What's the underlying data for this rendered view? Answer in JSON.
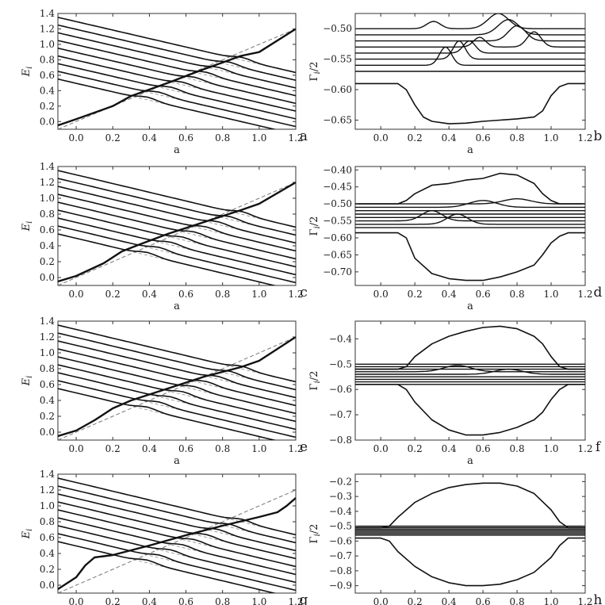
{
  "chart_data": [
    {
      "panel": "a",
      "kind": "E",
      "type": "line",
      "xlabel": "a",
      "ylabel": "E_i",
      "xlim": [
        -0.1,
        1.2
      ],
      "ylim": [
        -0.1,
        1.4
      ],
      "xticks": [
        "0.0",
        "0.2",
        "0.4",
        "0.6",
        "0.8",
        "1.0",
        "1.2"
      ],
      "yticks": [
        "0.0",
        "0.2",
        "0.4",
        "0.6",
        "0.8",
        "1.0",
        "1.2",
        "1.4"
      ],
      "rising_line": {
        "x": [
          -0.1,
          0.0,
          0.2,
          0.3,
          0.5,
          0.7,
          0.9,
          1.0,
          1.2
        ],
        "y": [
          -0.05,
          0.03,
          0.2,
          0.33,
          0.5,
          0.68,
          0.85,
          0.9,
          1.2
        ]
      },
      "levels": [
        1.35,
        1.25,
        1.15,
        1.05,
        0.95,
        0.85,
        0.75,
        0.65,
        0.55
      ],
      "level_slope": -0.55,
      "dashed": {
        "x": [
          -0.1,
          1.2
        ],
        "y": [
          -0.1,
          1.2
        ]
      }
    },
    {
      "panel": "b",
      "kind": "G",
      "type": "line",
      "xlabel": "a",
      "ylabel": "Γ_i/2",
      "xlim": [
        -0.15,
        1.2
      ],
      "ylim": [
        -0.665,
        -0.475
      ],
      "xticks": [
        "0.0",
        "0.2",
        "0.4",
        "0.6",
        "0.8",
        "1.0",
        "1.2"
      ],
      "yticks": [
        "-0.65",
        "-0.60",
        "-0.55",
        "-0.50"
      ],
      "baselines": [
        -0.5,
        -0.51,
        -0.52,
        -0.53,
        -0.54,
        -0.55,
        -0.56,
        -0.57
      ],
      "peaks": [
        {
          "base": -0.5,
          "center": 0.31,
          "height": 0.012,
          "width": 0.04
        },
        {
          "base": -0.5,
          "center": 0.69,
          "height": 0.025,
          "width": 0.06
        },
        {
          "base": -0.51,
          "center": 0.75,
          "height": 0.025,
          "width": 0.06
        },
        {
          "base": -0.52,
          "center": 0.8,
          "height": 0.025,
          "width": 0.05
        },
        {
          "base": -0.53,
          "center": 0.9,
          "height": 0.025,
          "width": 0.04
        },
        {
          "base": -0.53,
          "center": 0.58,
          "height": 0.016,
          "width": 0.035
        },
        {
          "base": -0.54,
          "center": 0.52,
          "height": 0.02,
          "width": 0.035
        },
        {
          "base": -0.55,
          "center": 0.46,
          "height": 0.03,
          "width": 0.035
        },
        {
          "base": -0.56,
          "center": 0.38,
          "height": 0.03,
          "width": 0.035
        }
      ],
      "lower": {
        "x": [
          -0.15,
          0.1,
          0.15,
          0.2,
          0.25,
          0.3,
          0.4,
          0.5,
          0.6,
          0.7,
          0.8,
          0.9,
          0.95,
          1.0,
          1.05,
          1.1,
          1.2
        ],
        "y": [
          -0.59,
          -0.59,
          -0.6,
          -0.625,
          -0.645,
          -0.652,
          -0.656,
          -0.655,
          -0.652,
          -0.65,
          -0.648,
          -0.645,
          -0.635,
          -0.61,
          -0.595,
          -0.59,
          -0.59
        ]
      }
    },
    {
      "panel": "c",
      "kind": "E",
      "type": "line",
      "xlabel": "a",
      "ylabel": "E_i",
      "xlim": [
        -0.1,
        1.2
      ],
      "ylim": [
        -0.1,
        1.4
      ],
      "xticks": [
        "0.0",
        "0.2",
        "0.4",
        "0.6",
        "0.8",
        "1.0",
        "1.2"
      ],
      "yticks": [
        "0.0",
        "0.2",
        "0.4",
        "0.6",
        "0.8",
        "1.0",
        "1.2",
        "1.4"
      ],
      "rising_line": {
        "x": [
          -0.1,
          0.0,
          0.15,
          0.25,
          0.35,
          0.5,
          0.7,
          0.9,
          1.0,
          1.2
        ],
        "y": [
          -0.05,
          0.02,
          0.18,
          0.33,
          0.42,
          0.55,
          0.7,
          0.85,
          0.93,
          1.2
        ]
      },
      "levels": [
        1.35,
        1.25,
        1.15,
        1.05,
        0.95,
        0.85,
        0.75,
        0.65,
        0.55
      ],
      "level_slope": -0.55,
      "dashed": {
        "x": [
          -0.1,
          1.2
        ],
        "y": [
          -0.1,
          1.2
        ]
      }
    },
    {
      "panel": "d",
      "kind": "G",
      "type": "line",
      "xlabel": "a",
      "ylabel": "Γ_i/2",
      "xlim": [
        -0.15,
        1.2
      ],
      "ylim": [
        -0.74,
        -0.39
      ],
      "xticks": [
        "0.0",
        "0.2",
        "0.4",
        "0.6",
        "0.8",
        "1.0",
        "1.2"
      ],
      "yticks": [
        "-0.70",
        "-0.65",
        "-0.60",
        "-0.55",
        "-0.50",
        "-0.45",
        "-0.40"
      ],
      "baselines": [
        -0.5,
        -0.51,
        -0.52,
        -0.53,
        -0.54,
        -0.55,
        -0.56,
        -0.57
      ],
      "peaks": [
        {
          "base": -0.5,
          "center": 0.8,
          "height": 0.015,
          "width": 0.08
        },
        {
          "base": -0.51,
          "center": 0.6,
          "height": 0.02,
          "width": 0.08
        },
        {
          "base": -0.55,
          "center": 0.3,
          "height": 0.03,
          "width": 0.06
        },
        {
          "base": -0.56,
          "center": 0.45,
          "height": 0.03,
          "width": 0.06
        }
      ],
      "upper": {
        "x": [
          -0.15,
          0.05,
          0.1,
          0.15,
          0.2,
          0.3,
          0.4,
          0.5,
          0.6,
          0.7,
          0.8,
          0.9,
          0.95,
          1.0,
          1.05,
          1.1,
          1.2
        ],
        "y": [
          -0.5,
          -0.5,
          -0.5,
          -0.49,
          -0.47,
          -0.445,
          -0.44,
          -0.43,
          -0.425,
          -0.41,
          -0.415,
          -0.44,
          -0.47,
          -0.49,
          -0.5,
          -0.5,
          -0.5
        ]
      },
      "lower": {
        "x": [
          -0.15,
          0.1,
          0.15,
          0.2,
          0.3,
          0.4,
          0.5,
          0.6,
          0.7,
          0.8,
          0.9,
          0.95,
          1.0,
          1.05,
          1.1,
          1.2
        ],
        "y": [
          -0.585,
          -0.585,
          -0.6,
          -0.66,
          -0.705,
          -0.72,
          -0.725,
          -0.725,
          -0.715,
          -0.7,
          -0.68,
          -0.65,
          -0.615,
          -0.595,
          -0.585,
          -0.585
        ]
      }
    },
    {
      "panel": "e",
      "kind": "E",
      "type": "line",
      "xlabel": "a",
      "ylabel": "E_i",
      "xlim": [
        -0.1,
        1.2
      ],
      "ylim": [
        -0.1,
        1.4
      ],
      "xticks": [
        "0.0",
        "0.2",
        "0.4",
        "0.6",
        "0.8",
        "1.0",
        "1.2"
      ],
      "yticks": [
        "0.0",
        "0.2",
        "0.4",
        "0.6",
        "0.8",
        "1.0",
        "1.2",
        "1.4"
      ],
      "rising_line": {
        "x": [
          -0.1,
          0.0,
          0.1,
          0.2,
          0.3,
          0.5,
          0.7,
          0.9,
          1.0,
          1.1,
          1.2
        ],
        "y": [
          -0.05,
          0.02,
          0.15,
          0.3,
          0.4,
          0.55,
          0.7,
          0.82,
          0.9,
          1.05,
          1.2
        ]
      },
      "levels": [
        1.35,
        1.25,
        1.15,
        1.05,
        0.95,
        0.85,
        0.75,
        0.65,
        0.55
      ],
      "level_slope": -0.55,
      "dashed": {
        "x": [
          -0.1,
          1.2
        ],
        "y": [
          -0.1,
          1.2
        ]
      }
    },
    {
      "panel": "f",
      "kind": "G",
      "type": "line",
      "xlabel": "a",
      "ylabel": "Γ_i/2",
      "xlim": [
        -0.15,
        1.2
      ],
      "ylim": [
        -0.8,
        -0.33
      ],
      "xticks": [
        "0.0",
        "0.2",
        "0.4",
        "0.6",
        "0.8",
        "1.0",
        "1.2"
      ],
      "yticks": [
        "-0.8",
        "-0.7",
        "-0.6",
        "-0.5",
        "-0.4"
      ],
      "baselines": [
        -0.5,
        -0.51,
        -0.52,
        -0.53,
        -0.54,
        -0.55,
        -0.56,
        -0.57,
        -0.58
      ],
      "peaks": [
        {
          "base": -0.53,
          "center": 0.45,
          "height": 0.025,
          "width": 0.08
        },
        {
          "base": -0.54,
          "center": 0.75,
          "height": 0.02,
          "width": 0.08
        }
      ],
      "upper": {
        "x": [
          -0.15,
          0.1,
          0.15,
          0.2,
          0.3,
          0.4,
          0.5,
          0.6,
          0.7,
          0.8,
          0.9,
          0.95,
          1.0,
          1.05,
          1.1,
          1.2
        ],
        "y": [
          -0.52,
          -0.52,
          -0.51,
          -0.47,
          -0.42,
          -0.39,
          -0.37,
          -0.355,
          -0.35,
          -0.36,
          -0.39,
          -0.42,
          -0.47,
          -0.51,
          -0.52,
          -0.52
        ]
      },
      "lower": {
        "x": [
          -0.15,
          0.1,
          0.15,
          0.2,
          0.3,
          0.4,
          0.5,
          0.6,
          0.7,
          0.8,
          0.9,
          0.95,
          1.0,
          1.05,
          1.1,
          1.2
        ],
        "y": [
          -0.58,
          -0.58,
          -0.6,
          -0.65,
          -0.72,
          -0.76,
          -0.78,
          -0.78,
          -0.77,
          -0.75,
          -0.72,
          -0.69,
          -0.64,
          -0.6,
          -0.58,
          -0.58
        ]
      }
    },
    {
      "panel": "g",
      "kind": "E",
      "type": "line",
      "xlabel": "a",
      "ylabel": "E_i",
      "xlim": [
        -0.1,
        1.2
      ],
      "ylim": [
        -0.1,
        1.4
      ],
      "xticks": [
        "0.0",
        "0.2",
        "0.4",
        "0.6",
        "0.8",
        "1.0",
        "1.2"
      ],
      "yticks": [
        "0.0",
        "0.2",
        "0.4",
        "0.6",
        "0.8",
        "1.0",
        "1.2",
        "1.4"
      ],
      "rising_line": {
        "x": [
          -0.1,
          0.0,
          0.05,
          0.1,
          0.2,
          0.4,
          0.6,
          0.8,
          1.0,
          1.1,
          1.15,
          1.2
        ],
        "y": [
          -0.05,
          0.1,
          0.25,
          0.35,
          0.38,
          0.5,
          0.63,
          0.75,
          0.86,
          0.92,
          1.0,
          1.1
        ]
      },
      "levels": [
        1.35,
        1.25,
        1.15,
        1.05,
        0.95,
        0.85,
        0.75,
        0.65,
        0.55
      ],
      "level_slope": -0.55,
      "dashed": {
        "x": [
          -0.1,
          1.2
        ],
        "y": [
          -0.1,
          1.2
        ]
      }
    },
    {
      "panel": "h",
      "kind": "G",
      "type": "line",
      "xlabel": "a",
      "ylabel": "Γ_i/2",
      "xlim": [
        -0.15,
        1.2
      ],
      "ylim": [
        -0.95,
        -0.15
      ],
      "xticks": [
        "0.0",
        "0.2",
        "0.4",
        "0.6",
        "0.8",
        "1.0",
        "1.2"
      ],
      "yticks": [
        "-0.9",
        "-0.8",
        "-0.7",
        "-0.6",
        "-0.5",
        "-0.4",
        "-0.3",
        "-0.2"
      ],
      "baselines": [
        -0.5,
        -0.51,
        -0.52,
        -0.53,
        -0.54,
        -0.55,
        -0.56
      ],
      "peaks": [],
      "upper": {
        "x": [
          -0.15,
          0.0,
          0.05,
          0.1,
          0.2,
          0.3,
          0.4,
          0.5,
          0.6,
          0.7,
          0.8,
          0.9,
          1.0,
          1.05,
          1.1,
          1.2
        ],
        "y": [
          -0.51,
          -0.51,
          -0.5,
          -0.44,
          -0.34,
          -0.28,
          -0.24,
          -0.22,
          -0.21,
          -0.21,
          -0.23,
          -0.28,
          -0.39,
          -0.47,
          -0.51,
          -0.51
        ]
      },
      "lower": {
        "x": [
          -0.15,
          0.0,
          0.05,
          0.1,
          0.2,
          0.3,
          0.4,
          0.5,
          0.6,
          0.7,
          0.8,
          0.9,
          1.0,
          1.05,
          1.1,
          1.2
        ],
        "y": [
          -0.58,
          -0.58,
          -0.6,
          -0.67,
          -0.77,
          -0.84,
          -0.88,
          -0.9,
          -0.9,
          -0.89,
          -0.86,
          -0.81,
          -0.71,
          -0.63,
          -0.58,
          -0.58
        ]
      }
    }
  ]
}
